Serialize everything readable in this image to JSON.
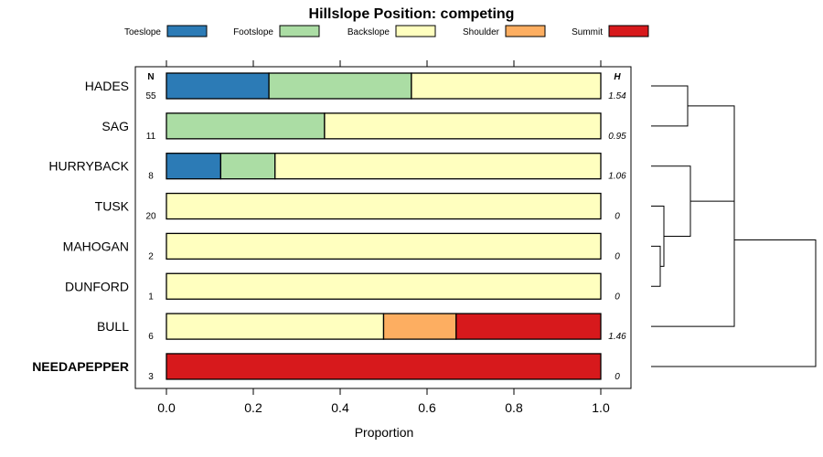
{
  "chart_data": {
    "type": "bar",
    "title": "Hillslope Position: competing",
    "xlabel": "Proportion",
    "xlim": [
      0,
      1
    ],
    "xticks": [
      "0.0",
      "0.2",
      "0.4",
      "0.6",
      "0.8",
      "1.0"
    ],
    "legend_position": "top",
    "series": [
      {
        "name": "Toeslope",
        "color": "#2c7bb6"
      },
      {
        "name": "Footslope",
        "color": "#abdda4"
      },
      {
        "name": "Backslope",
        "color": "#ffffbf"
      },
      {
        "name": "Shoulder",
        "color": "#fdae61"
      },
      {
        "name": "Summit",
        "color": "#d7191c"
      }
    ],
    "columns": {
      "n_header": "N",
      "h_header": "H"
    },
    "rows": [
      {
        "label": "HADES",
        "n": "55",
        "h": "1.54",
        "bold": false,
        "values": [
          0.236,
          0.328,
          0.436,
          0,
          0
        ]
      },
      {
        "label": "SAG",
        "n": "11",
        "h": "0.95",
        "bold": false,
        "values": [
          0,
          0.364,
          0.636,
          0,
          0
        ]
      },
      {
        "label": "HURRYBACK",
        "n": "8",
        "h": "1.06",
        "bold": false,
        "values": [
          0.125,
          0.125,
          0.75,
          0,
          0
        ]
      },
      {
        "label": "TUSK",
        "n": "20",
        "h": "0",
        "bold": false,
        "values": [
          0,
          0,
          1,
          0,
          0
        ]
      },
      {
        "label": "MAHOGAN",
        "n": "2",
        "h": "0",
        "bold": false,
        "values": [
          0,
          0,
          1,
          0,
          0
        ]
      },
      {
        "label": "DUNFORD",
        "n": "1",
        "h": "0",
        "bold": false,
        "values": [
          0,
          0,
          1,
          0,
          0
        ]
      },
      {
        "label": "BULL",
        "n": "6",
        "h": "1.46",
        "bold": false,
        "values": [
          0,
          0,
          0.5,
          0.167,
          0.333
        ]
      },
      {
        "label": "NEEDAPEPPER",
        "n": "3",
        "h": "0",
        "bold": true,
        "values": [
          0,
          0,
          0,
          0,
          1
        ]
      }
    ]
  }
}
